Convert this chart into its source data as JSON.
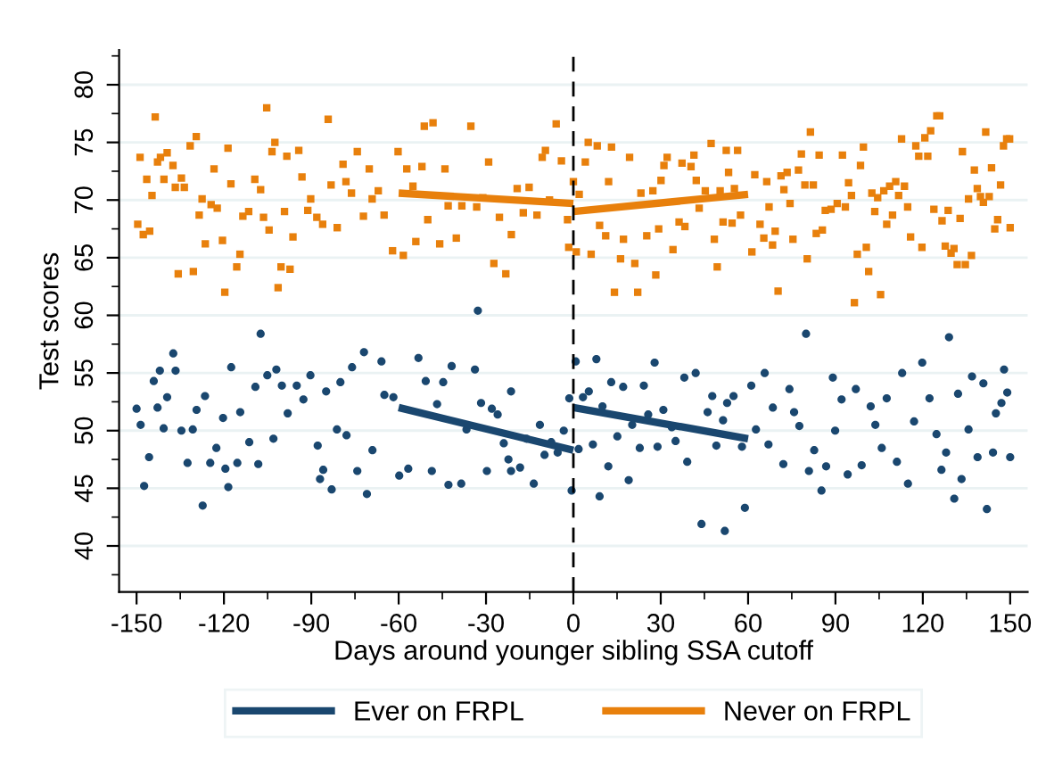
{
  "chart_data": {
    "type": "scatter",
    "xlabel": "Days around younger sibling SSA cutoff",
    "ylabel": "Test scores",
    "xlim": [
      -156,
      156
    ],
    "ylim": [
      36,
      83
    ],
    "xticks": [
      -150,
      {
        "value": -135,
        "label": null
      },
      -120,
      {
        "value": -105,
        "label": null
      },
      -90,
      {
        "value": -75,
        "label": null
      },
      -60,
      {
        "value": -45,
        "label": null
      },
      -30,
      {
        "value": -15,
        "label": null
      },
      0,
      {
        "value": 15,
        "label": null
      },
      30,
      {
        "value": 45,
        "label": null
      },
      60,
      {
        "value": 75,
        "label": null
      },
      90,
      {
        "value": 105,
        "label": null
      },
      120,
      {
        "value": 135,
        "label": null
      },
      150
    ],
    "yticks": [
      {
        "value": 37.5,
        "label": null
      },
      40,
      {
        "value": 42.5,
        "label": null
      },
      45,
      {
        "value": 47.5,
        "label": null
      },
      50,
      {
        "value": 52.5,
        "label": null
      },
      55,
      {
        "value": 57.5,
        "label": null
      },
      60,
      {
        "value": 62.5,
        "label": null
      },
      65,
      {
        "value": 67.5,
        "label": null
      },
      70,
      {
        "value": 72.5,
        "label": null
      },
      75,
      {
        "value": 77.5,
        "label": null
      },
      80,
      {
        "value": 82.5,
        "label": null
      }
    ],
    "grid": "y",
    "legend": "bottom",
    "ref_lines": [
      {
        "axis": "x",
        "value": 0,
        "color": "#000000",
        "line_style": "dashed"
      }
    ],
    "series": [
      {
        "color": "#1a476f",
        "marker": "circle",
        "x": [
          -150,
          -148.6,
          -147.4,
          -145.7,
          -144.1,
          -142.8,
          -142.0,
          -140.7,
          -139.5,
          -137.4,
          -136.6,
          -134.6,
          -132.5,
          -130.7,
          -129.4,
          -127.3,
          -126.5,
          -124.7,
          -122.6,
          -120.3,
          -119.5,
          -118.5,
          -117.5,
          -115.4,
          -114.4,
          -111.3,
          -109.2,
          -108.2,
          -107.4,
          -105.1,
          -103.0,
          -102.0,
          -100.1,
          -98.1,
          -95.0,
          -92.7,
          -90.3,
          -87.8,
          -87.0,
          -85.9,
          -84.9,
          -83.0,
          -81.2,
          -80.0,
          -77.9,
          -76.0,
          -74.2,
          -71.9,
          -70.9,
          -69.0,
          -65.9,
          -64.9,
          -61.8,
          -59.8,
          -56.7,
          -53.2,
          -50.7,
          -48.6,
          -46.8,
          -44.7,
          -42.9,
          -41.8,
          -38.5,
          -36.7,
          -33.8,
          -32.8,
          -31.7,
          -29.7,
          -28.0,
          -26.0,
          -23.9,
          -22.3,
          -21.4,
          -21.4,
          -18.3,
          -16.1,
          -13.6,
          -11.5,
          -9.9,
          -7.6,
          -5.4,
          -3.3,
          -1.4,
          -0.6,
          0.8,
          1.8,
          3.3,
          5.3,
          6.7,
          7.9,
          9.0,
          10.0,
          12.0,
          13.0,
          15.1,
          17.1,
          19.0,
          20.2,
          22.8,
          24.2,
          25.7,
          27.9,
          28.9,
          30.9,
          33.8,
          35.1,
          38.1,
          39.1,
          42.0,
          44.0,
          46.1,
          47.7,
          49.1,
          51.4,
          52.0,
          52.8,
          55.0,
          57.9,
          58.9,
          61.1,
          62.7,
          65.7,
          67.0,
          68.5,
          72.1,
          74.2,
          75.8,
          77.6,
          79.9,
          80.9,
          82.7,
          85.2,
          86.8,
          89.1,
          89.9,
          92.1,
          94.2,
          97.0,
          99.0,
          102.1,
          103.7,
          105.9,
          107.6,
          111.1,
          112.9,
          114.9,
          117.0,
          119.8,
          122.3,
          124.7,
          126.4,
          128.0,
          129.0,
          130.8,
          132.1,
          133.3,
          135.7,
          136.9,
          138.8,
          140.8,
          142.0,
          144.1,
          145.1,
          147.0,
          147.9,
          149.0,
          150.0
        ],
        "values": [
          51.9,
          50.5,
          45.2,
          47.7,
          54.3,
          52.0,
          55.2,
          50.2,
          52.9,
          56.7,
          55.2,
          50.0,
          47.2,
          50.1,
          51.8,
          43.5,
          53.0,
          47.2,
          48.5,
          51.1,
          46.7,
          45.1,
          55.5,
          47.2,
          51.6,
          49.0,
          53.8,
          47.1,
          58.4,
          54.8,
          49.3,
          55.3,
          53.9,
          51.5,
          53.9,
          52.7,
          54.8,
          48.7,
          45.8,
          46.6,
          53.4,
          44.9,
          50.1,
          54.2,
          49.6,
          55.5,
          46.5,
          56.8,
          44.5,
          48.3,
          56.0,
          53.1,
          52.9,
          46.1,
          46.7,
          56.3,
          54.3,
          46.5,
          52.3,
          54.2,
          45.3,
          55.6,
          45.4,
          50.1,
          55.3,
          60.4,
          52.4,
          46.5,
          51.9,
          51.4,
          48.9,
          47.5,
          46.5,
          53.4,
          46.8,
          49.3,
          45.4,
          50.5,
          47.9,
          49.0,
          48.1,
          50.0,
          52.8,
          44.8,
          56.0,
          48.4,
          52.9,
          53.4,
          48.8,
          56.2,
          44.3,
          52.1,
          46.9,
          54.2,
          49.5,
          53.8,
          45.7,
          50.5,
          48.5,
          53.9,
          51.4,
          55.9,
          48.6,
          51.8,
          50.3,
          49.1,
          54.6,
          47.3,
          55.0,
          41.9,
          51.6,
          53.0,
          48.7,
          50.9,
          41.3,
          52.4,
          53.0,
          48.6,
          43.3,
          53.9,
          50.1,
          55.0,
          48.8,
          52.0,
          47.1,
          53.6,
          51.6,
          50.4,
          58.4,
          46.5,
          48.3,
          44.8,
          46.9,
          54.6,
          50.0,
          52.7,
          46.2,
          53.6,
          47.0,
          52.1,
          50.5,
          48.5,
          52.8,
          47.3,
          55.0,
          45.4,
          50.8,
          55.9,
          52.8,
          49.7,
          46.6,
          48.1,
          58.1,
          44.1,
          53.2,
          45.8,
          50.1,
          54.7,
          47.7,
          54.1,
          43.2,
          48.1,
          51.5,
          52.4,
          55.3,
          53.3,
          47.7
        ]
      },
      {
        "color": "#e8800c",
        "marker": "square",
        "x": [
          -149.6,
          -148.8,
          -147.7,
          -146.5,
          -145.5,
          -144.7,
          -143.6,
          -142.8,
          -141.8,
          -140.6,
          -139.5,
          -137.5,
          -136.7,
          -135.7,
          -134.6,
          -133.6,
          -131.6,
          -130.5,
          -129.5,
          -128.5,
          -127.5,
          -126.4,
          -124.4,
          -123.4,
          -122.3,
          -120.5,
          -119.7,
          -118.6,
          -117.6,
          -115.6,
          -114.5,
          -113.5,
          -111.5,
          -109.4,
          -107.4,
          -106.4,
          -105.3,
          -104.5,
          -103.5,
          -102.5,
          -101.4,
          -100.4,
          -99.2,
          -98.4,
          -97.3,
          -96.3,
          -94.3,
          -93.2,
          -91.2,
          -90.2,
          -88.1,
          -86.1,
          -84.2,
          -83.2,
          -81.1,
          -79.1,
          -78.1,
          -76.2,
          -74.2,
          -72.1,
          -70.1,
          -69.1,
          -67.0,
          -65.0,
          -62.1,
          -60.2,
          -58.4,
          -57.2,
          -55.1,
          -54.1,
          -52.0,
          -51.2,
          -50.0,
          -48.2,
          -45.9,
          -44.1,
          -43.0,
          -40.2,
          -38.3,
          -35.2,
          -33.2,
          -31.1,
          -29.1,
          -27.3,
          -25.4,
          -23.2,
          -21.3,
          -19.3,
          -17.2,
          -15.2,
          -12.5,
          -10.7,
          -9.6,
          -8.2,
          -5.9,
          -4.1,
          -2.0,
          -1.6,
          0.0,
          1.0,
          2.0,
          4.1,
          5.1,
          6.1,
          8.2,
          9.0,
          11.1,
          12.1,
          13.1,
          14.1,
          16.2,
          17.2,
          19.3,
          21.1,
          22.1,
          23.2,
          25.2,
          27.3,
          28.3,
          29.3,
          30.1,
          31.1,
          32.2,
          34.2,
          36.3,
          37.3,
          38.3,
          40.4,
          41.4,
          42.2,
          43.2,
          45.3,
          47.3,
          48.4,
          49.4,
          50.4,
          51.4,
          52.5,
          53.3,
          54.5,
          55.3,
          56.4,
          57.4,
          61.3,
          62.3,
          64.1,
          65.4,
          66.4,
          67.2,
          68.4,
          69.3,
          70.3,
          71.3,
          72.3,
          73.4,
          74.4,
          75.4,
          77.3,
          78.3,
          79.5,
          80.3,
          81.4,
          82.4,
          83.4,
          84.4,
          85.5,
          86.5,
          88.5,
          90.6,
          92.4,
          93.4,
          94.5,
          95.5,
          96.5,
          97.5,
          98.6,
          99.6,
          100.6,
          101.4,
          102.5,
          103.5,
          104.5,
          105.5,
          106.6,
          107.6,
          108.6,
          109.6,
          110.7,
          111.7,
          112.7,
          113.7,
          114.8,
          115.8,
          117.6,
          118.6,
          119.7,
          120.7,
          121.7,
          122.7,
          123.8,
          124.8,
          125.8,
          126.6,
          127.7,
          128.7,
          129.7,
          130.7,
          131.8,
          132.8,
          133.6,
          134.6,
          135.7,
          136.7,
          137.7,
          138.7,
          139.8,
          140.8,
          141.6,
          142.8,
          143.6,
          144.7,
          145.7,
          146.7,
          147.7,
          148.8,
          149.8,
          150.0
        ],
        "values": [
          67.9,
          73.7,
          67.0,
          71.8,
          67.3,
          70.4,
          77.2,
          73.3,
          73.7,
          71.8,
          74.1,
          73.0,
          71.1,
          63.6,
          71.9,
          71.1,
          74.7,
          63.8,
          75.5,
          68.7,
          70.1,
          66.2,
          69.6,
          72.7,
          69.3,
          66.5,
          62.0,
          74.5,
          71.4,
          64.2,
          65.3,
          68.6,
          69.0,
          71.8,
          70.9,
          68.5,
          78.0,
          67.4,
          74.2,
          75.0,
          62.4,
          64.2,
          69.0,
          73.8,
          64.0,
          66.8,
          74.3,
          72.0,
          69.1,
          70.1,
          68.5,
          67.9,
          77.0,
          71.3,
          67.6,
          73.1,
          71.6,
          70.6,
          74.2,
          68.6,
          72.7,
          70.1,
          70.8,
          68.7,
          65.6,
          74.2,
          65.2,
          72.7,
          71.2,
          66.4,
          72.9,
          76.4,
          68.3,
          76.7,
          66.2,
          72.7,
          69.5,
          66.7,
          69.5,
          76.4,
          69.4,
          70.2,
          73.3,
          64.5,
          68.5,
          63.6,
          67.0,
          71.0,
          68.9,
          71.1,
          68.7,
          73.7,
          74.3,
          70.0,
          76.6,
          73.4,
          68.3,
          65.9,
          71.6,
          65.5,
          70.5,
          73.3,
          75.0,
          65.3,
          74.7,
          67.8,
          66.9,
          71.6,
          74.6,
          62.0,
          64.9,
          66.6,
          73.7,
          64.5,
          62.0,
          70.6,
          66.9,
          70.8,
          63.5,
          67.5,
          71.7,
          73.0,
          73.7,
          65.7,
          68.1,
          73.2,
          67.7,
          72.9,
          73.9,
          71.7,
          69.3,
          70.8,
          74.9,
          66.6,
          64.2,
          70.8,
          68.1,
          74.3,
          72.4,
          68.0,
          71.0,
          74.3,
          68.7,
          65.5,
          72.2,
          67.9,
          66.7,
          71.6,
          69.4,
          66.1,
          67.3,
          62.1,
          72.1,
          70.9,
          72.4,
          69.7,
          66.6,
          72.6,
          74.0,
          71.3,
          64.9,
          75.9,
          71.3,
          67.1,
          73.9,
          67.4,
          69.1,
          69.2,
          69.7,
          73.9,
          69.4,
          71.5,
          70.4,
          61.1,
          65.3,
          73.0,
          74.6,
          65.9,
          63.8,
          70.6,
          69.0,
          70.2,
          61.8,
          70.8,
          67.9,
          71.2,
          68.7,
          71.6,
          70.4,
          75.3,
          71.2,
          69.4,
          66.8,
          74.7,
          73.8,
          65.9,
          75.4,
          73.8,
          76.0,
          69.2,
          77.3,
          77.3,
          68.2,
          66.0,
          69.1,
          65.4,
          65.8,
          64.4,
          68.4,
          74.2,
          64.4,
          70.1,
          65.2,
          72.6,
          71.0,
          70.3,
          69.8,
          75.9,
          70.3,
          72.8,
          67.5,
          68.3,
          71.3,
          74.7,
          75.3,
          75.3,
          67.6
        ]
      },
      {
        "type": "line",
        "name": "Ever on FRPL",
        "color": "#1a476f",
        "x": [
          -60,
          0
        ],
        "values": [
          52.0,
          48.3
        ]
      },
      {
        "type": "line",
        "color": "#1a476f",
        "x": [
          0,
          60
        ],
        "values": [
          52.0,
          49.3
        ]
      },
      {
        "type": "line",
        "name": "Never on FRPL",
        "color": "#e8800c",
        "x": [
          -60,
          0
        ],
        "values": [
          70.6,
          69.7
        ]
      },
      {
        "type": "line",
        "color": "#e8800c",
        "x": [
          0,
          60
        ],
        "values": [
          69.0,
          70.5
        ]
      }
    ]
  }
}
